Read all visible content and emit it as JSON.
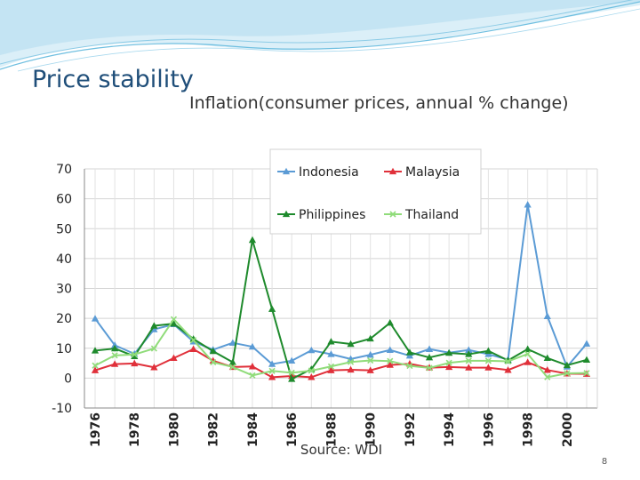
{
  "slide": {
    "title": "Price stability",
    "page_number": "8"
  },
  "chart_data": {
    "type": "line",
    "title": "Inflation(consumer prices, annual % change)",
    "source_label": "Source: WDI",
    "xlabel": "",
    "ylabel": "",
    "ylim": [
      -10,
      70
    ],
    "yticks": [
      -10,
      0,
      10,
      20,
      30,
      40,
      50,
      60,
      70
    ],
    "x": [
      1976,
      1977,
      1978,
      1979,
      1980,
      1981,
      1982,
      1983,
      1984,
      1985,
      1986,
      1987,
      1988,
      1989,
      1990,
      1991,
      1992,
      1993,
      1994,
      1995,
      1996,
      1997,
      1998,
      1999,
      2000,
      2001
    ],
    "xtick_labels": [
      "1976",
      "1978",
      "1980",
      "1982",
      "1984",
      "1986",
      "1988",
      "1990",
      "1992",
      "1994",
      "1996",
      "1998",
      "2000"
    ],
    "grid": true,
    "legend_position": "top-center",
    "series": [
      {
        "name": "Indonesia",
        "color": "#5b9bd5",
        "marker": "triangle",
        "values": [
          19.9,
          11.0,
          8.1,
          16.3,
          18.0,
          12.2,
          9.5,
          11.8,
          10.5,
          4.7,
          5.8,
          9.3,
          8.0,
          6.4,
          7.8,
          9.4,
          7.5,
          9.7,
          8.5,
          9.4,
          8.0,
          6.2,
          58.0,
          20.7,
          3.8,
          11.5
        ]
      },
      {
        "name": "Malaysia",
        "color": "#e0303a",
        "marker": "triangle",
        "values": [
          2.6,
          4.7,
          4.9,
          3.6,
          6.7,
          9.7,
          5.8,
          3.7,
          3.9,
          0.3,
          0.7,
          0.3,
          2.6,
          2.8,
          2.6,
          4.4,
          4.8,
          3.5,
          3.7,
          3.5,
          3.5,
          2.7,
          5.3,
          2.7,
          1.5,
          1.4
        ]
      },
      {
        "name": "Philippines",
        "color": "#1e8a2c",
        "marker": "triangle",
        "values": [
          9.2,
          9.9,
          7.3,
          17.5,
          18.2,
          13.1,
          9.0,
          5.3,
          46.2,
          23.1,
          -0.3,
          3.0,
          12.2,
          11.4,
          13.2,
          18.5,
          8.6,
          6.9,
          8.4,
          8.0,
          9.1,
          5.9,
          9.7,
          6.7,
          4.3,
          6.1
        ]
      },
      {
        "name": "Thailand",
        "color": "#90dc7a",
        "marker": "x",
        "values": [
          4.2,
          7.6,
          7.9,
          9.9,
          19.7,
          12.7,
          5.3,
          3.7,
          0.9,
          2.4,
          1.8,
          2.5,
          3.9,
          5.4,
          5.9,
          5.7,
          4.1,
          3.4,
          5.1,
          5.8,
          5.8,
          5.6,
          8.1,
          0.3,
          1.6,
          1.7
        ]
      }
    ]
  }
}
